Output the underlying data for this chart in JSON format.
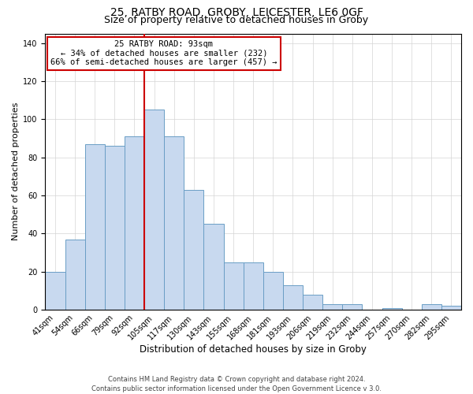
{
  "title1": "25, RATBY ROAD, GROBY, LEICESTER, LE6 0GF",
  "title2": "Size of property relative to detached houses in Groby",
  "xlabel": "Distribution of detached houses by size in Groby",
  "ylabel": "Number of detached properties",
  "bar_labels": [
    "41sqm",
    "54sqm",
    "66sqm",
    "79sqm",
    "92sqm",
    "105sqm",
    "117sqm",
    "130sqm",
    "143sqm",
    "155sqm",
    "168sqm",
    "181sqm",
    "193sqm",
    "206sqm",
    "219sqm",
    "232sqm",
    "244sqm",
    "257sqm",
    "270sqm",
    "282sqm",
    "295sqm"
  ],
  "bar_values": [
    20,
    37,
    87,
    86,
    91,
    105,
    91,
    63,
    45,
    25,
    25,
    20,
    13,
    8,
    3,
    3,
    0,
    1,
    0,
    3,
    2
  ],
  "bar_color": "#c8d9ef",
  "bar_edge_color": "#6a9ec5",
  "vline_color": "#cc0000",
  "annotation_title": "25 RATBY ROAD: 93sqm",
  "annotation_line1": "← 34% of detached houses are smaller (232)",
  "annotation_line2": "66% of semi-detached houses are larger (457) →",
  "annotation_box_color": "#ffffff",
  "annotation_box_edge": "#cc0000",
  "ylim": [
    0,
    145
  ],
  "yticks": [
    0,
    20,
    40,
    60,
    80,
    100,
    120,
    140
  ],
  "footer1": "Contains HM Land Registry data © Crown copyright and database right 2024.",
  "footer2": "Contains public sector information licensed under the Open Government Licence v 3.0.",
  "title1_fontsize": 10,
  "title2_fontsize": 9,
  "xlabel_fontsize": 8.5,
  "ylabel_fontsize": 8,
  "tick_fontsize": 7,
  "annotation_fontsize": 7.5,
  "footer_fontsize": 6
}
